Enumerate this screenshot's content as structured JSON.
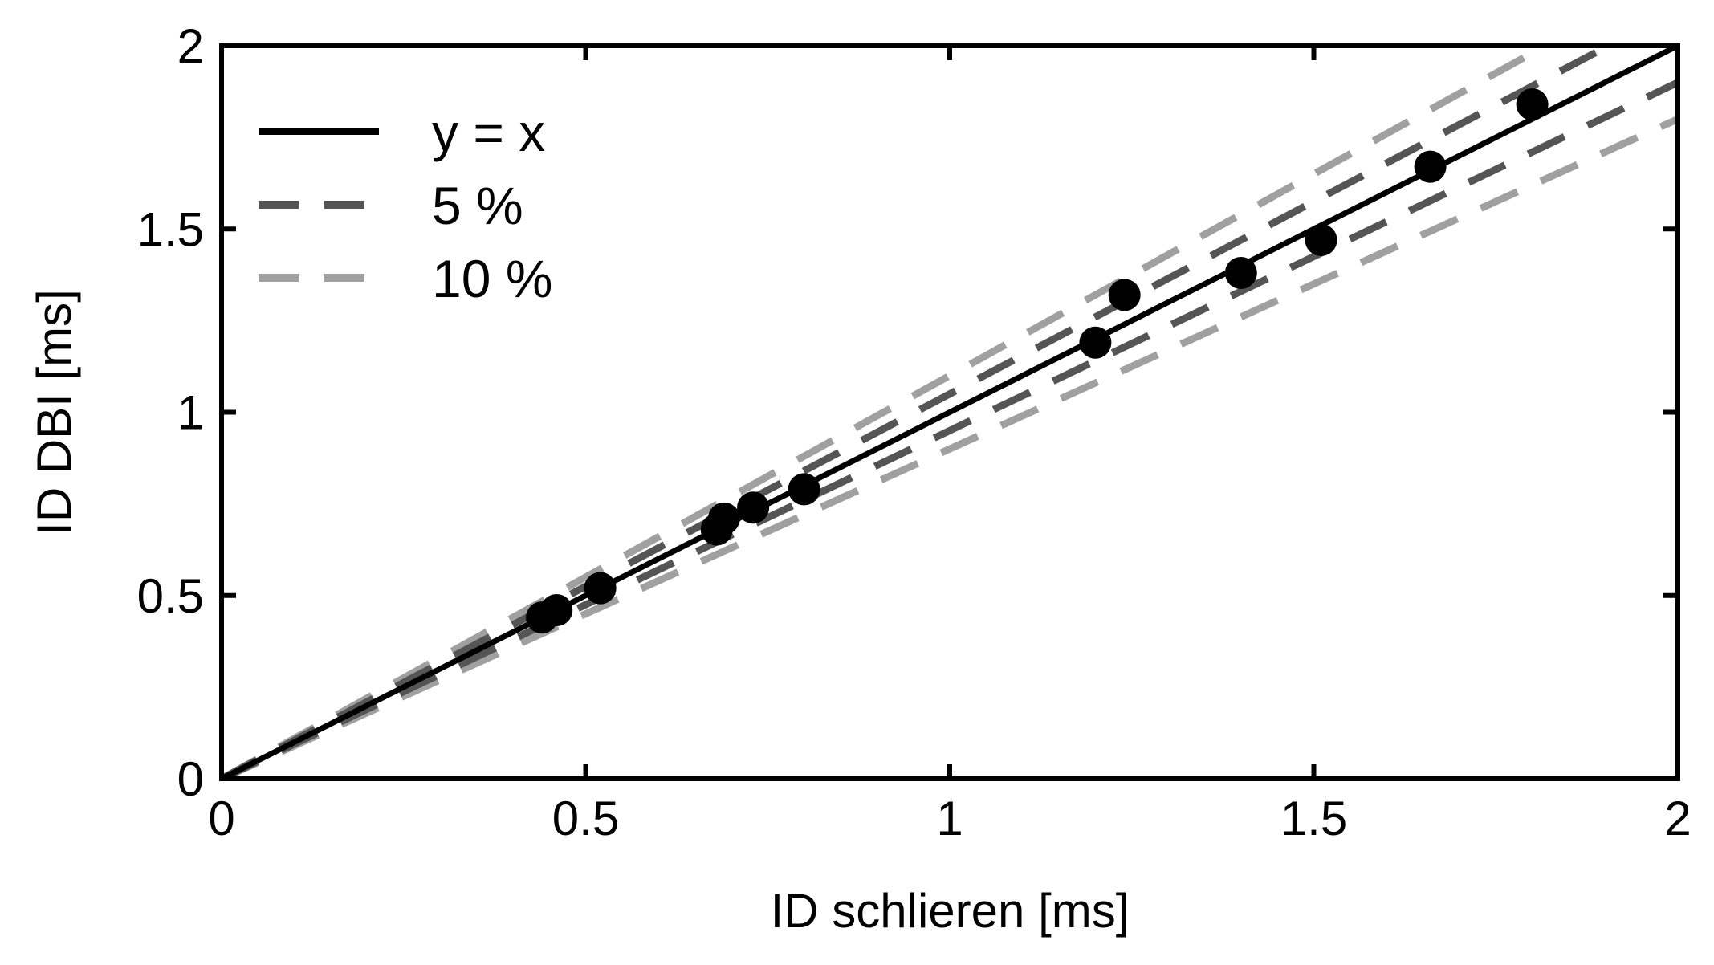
{
  "chart_data": {
    "type": "scatter",
    "xlabel": "ID schlieren [ms]",
    "ylabel": "ID DBI [ms]",
    "xlim": [
      0,
      2
    ],
    "ylim": [
      0,
      2
    ],
    "xticks": [
      0,
      0.5,
      1,
      1.5,
      2
    ],
    "yticks": [
      0,
      0.5,
      1,
      1.5,
      2
    ],
    "xtick_labels": [
      "0",
      "0.5",
      "1",
      "1.5",
      "2"
    ],
    "ytick_labels": [
      "0",
      "0.5",
      "1",
      "1.5",
      "2"
    ],
    "grid": false,
    "legend_position": "top-left",
    "points": {
      "x": [
        0.44,
        0.46,
        0.52,
        0.68,
        0.69,
        0.73,
        0.8,
        1.2,
        1.24,
        1.4,
        1.51,
        1.66,
        1.8
      ],
      "y": [
        0.44,
        0.46,
        0.52,
        0.68,
        0.71,
        0.74,
        0.79,
        1.19,
        1.32,
        1.38,
        1.47,
        1.67,
        1.84
      ],
      "color": "#000000"
    },
    "reference_lines": [
      {
        "name": "y = x",
        "factor": 1.0,
        "style": "solid",
        "color": "#000000"
      },
      {
        "name": "5 %",
        "factors": [
          1.05,
          0.95
        ],
        "style": "dashed",
        "color": "#555555"
      },
      {
        "name": "10 %",
        "factors": [
          1.1,
          0.9
        ],
        "style": "dashed",
        "color": "#a0a0a0"
      }
    ]
  }
}
